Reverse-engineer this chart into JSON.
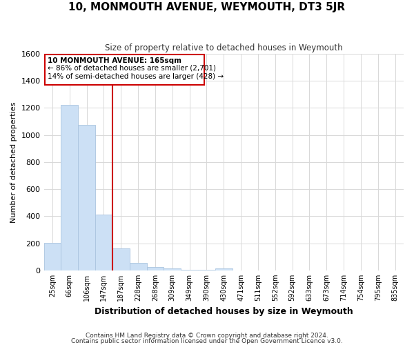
{
  "title": "10, MONMOUTH AVENUE, WEYMOUTH, DT3 5JR",
  "subtitle": "Size of property relative to detached houses in Weymouth",
  "xlabel": "Distribution of detached houses by size in Weymouth",
  "ylabel": "Number of detached properties",
  "bar_labels": [
    "25sqm",
    "66sqm",
    "106sqm",
    "147sqm",
    "187sqm",
    "228sqm",
    "268sqm",
    "309sqm",
    "349sqm",
    "390sqm",
    "430sqm",
    "471sqm",
    "511sqm",
    "552sqm",
    "592sqm",
    "633sqm",
    "673sqm",
    "714sqm",
    "754sqm",
    "795sqm",
    "835sqm"
  ],
  "bar_values": [
    205,
    1225,
    1075,
    410,
    160,
    55,
    25,
    15,
    5,
    5,
    12,
    0,
    0,
    0,
    0,
    0,
    0,
    0,
    0,
    0,
    0
  ],
  "bar_color": "#cce0f5",
  "bar_edge_color": "#aac4df",
  "vline_color": "#cc0000",
  "ylim": [
    0,
    1600
  ],
  "yticks": [
    0,
    200,
    400,
    600,
    800,
    1000,
    1200,
    1400,
    1600
  ],
  "annotation_title": "10 MONMOUTH AVENUE: 165sqm",
  "annotation_line1": "← 86% of detached houses are smaller (2,701)",
  "annotation_line2": "14% of semi-detached houses are larger (428) →",
  "annotation_box_color": "#ffffff",
  "annotation_box_edge": "#cc0000",
  "footer_line1": "Contains HM Land Registry data © Crown copyright and database right 2024.",
  "footer_line2": "Contains public sector information licensed under the Open Government Licence v3.0.",
  "background_color": "#ffffff",
  "grid_color": "#d8d8d8"
}
